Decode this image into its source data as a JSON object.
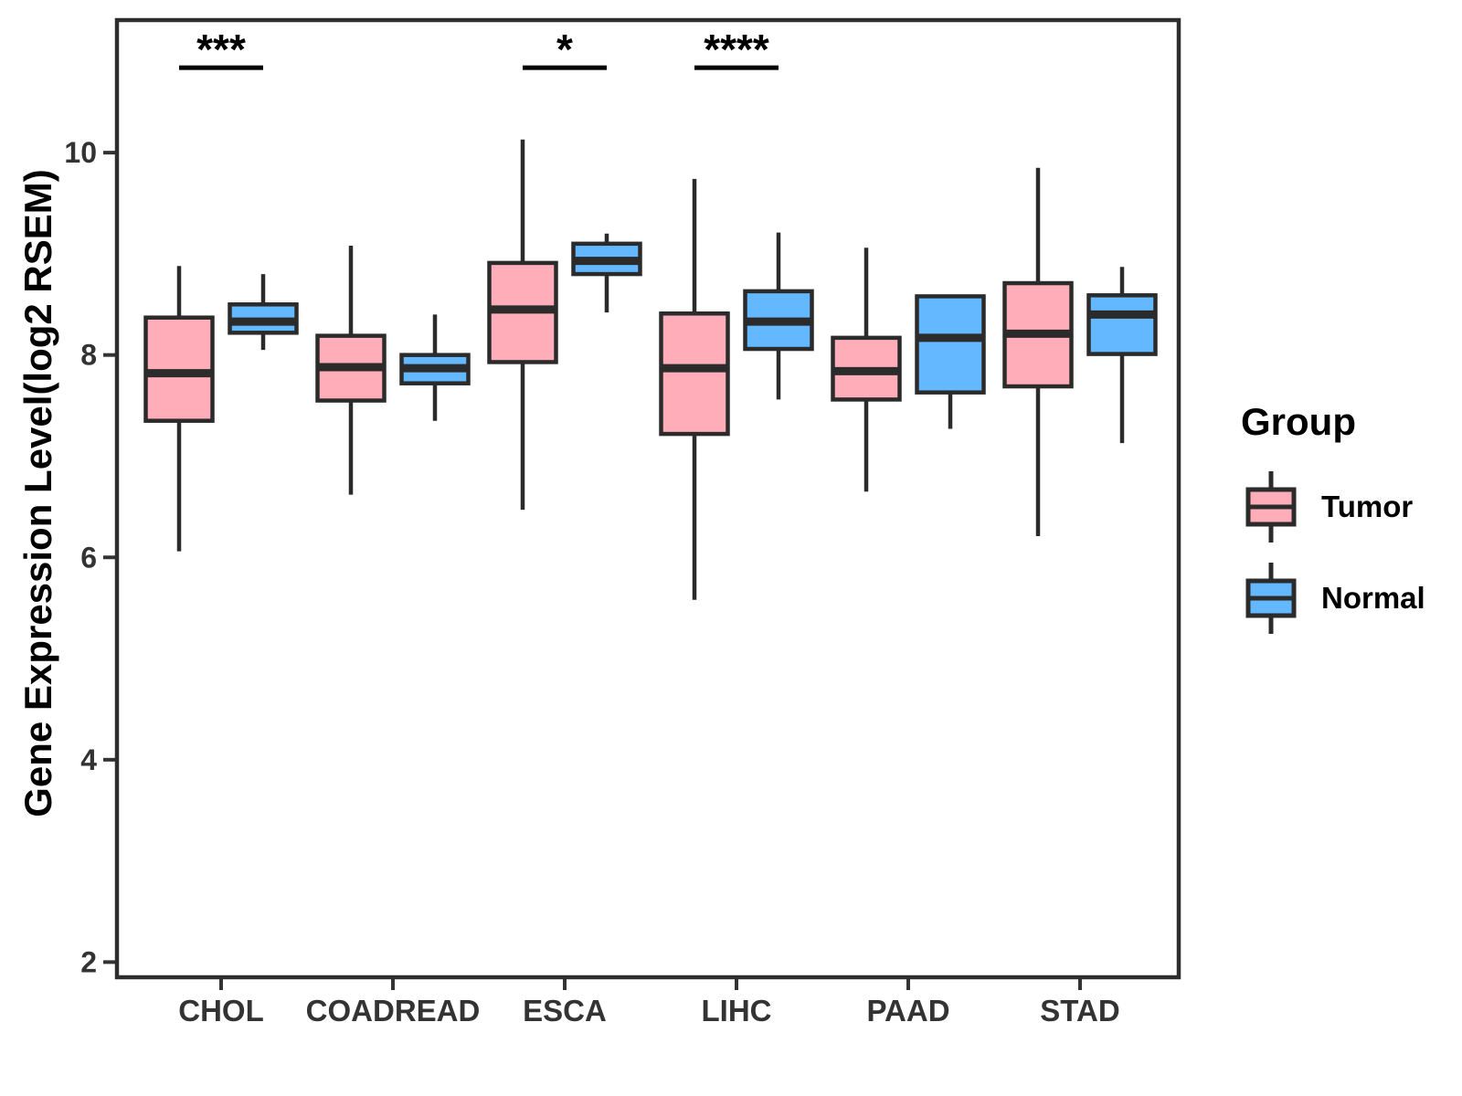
{
  "chart_data": {
    "type": "boxplot",
    "title": "",
    "xlabel": "",
    "ylabel": "Gene Expression Level(log2 RSEM)",
    "ylim": [
      1.85,
      11.31
    ],
    "yticks": [
      2,
      4,
      6,
      8,
      10
    ],
    "grid": false,
    "legend_position": "right",
    "categories": [
      "CHOL",
      "COADREAD",
      "ESCA",
      "LIHC",
      "PAAD",
      "STAD"
    ],
    "series": [
      {
        "name": "Tumor",
        "color": "#FFAEB9",
        "stats": [
          {
            "min": 6.06,
            "q1": 7.35,
            "median": 7.82,
            "q3": 8.37,
            "max": 8.88
          },
          {
            "min": 6.62,
            "q1": 7.55,
            "median": 7.88,
            "q3": 8.19,
            "max": 9.08
          },
          {
            "min": 6.47,
            "q1": 7.93,
            "median": 8.45,
            "q3": 8.91,
            "max": 10.13
          },
          {
            "min": 5.58,
            "q1": 7.22,
            "median": 7.87,
            "q3": 8.41,
            "max": 9.74
          },
          {
            "min": 6.65,
            "q1": 7.56,
            "median": 7.84,
            "q3": 8.17,
            "max": 9.06
          },
          {
            "min": 6.21,
            "q1": 7.69,
            "median": 8.21,
            "q3": 8.71,
            "max": 9.85
          }
        ]
      },
      {
        "name": "Normal",
        "color": "#63B8FF",
        "stats": [
          {
            "min": 8.05,
            "q1": 8.22,
            "median": 8.33,
            "q3": 8.5,
            "max": 8.8
          },
          {
            "min": 7.35,
            "q1": 7.72,
            "median": 7.87,
            "q3": 8.0,
            "max": 8.4
          },
          {
            "min": 8.42,
            "q1": 8.8,
            "median": 8.93,
            "q3": 9.1,
            "max": 9.2
          },
          {
            "min": 7.56,
            "q1": 8.06,
            "median": 8.33,
            "q3": 8.63,
            "max": 9.21
          },
          {
            "min": 7.27,
            "q1": 7.63,
            "median": 8.17,
            "q3": 8.58,
            "max": 8.58
          },
          {
            "min": 7.13,
            "q1": 8.01,
            "median": 8.4,
            "q3": 8.59,
            "max": 8.87
          }
        ]
      }
    ],
    "significance": [
      {
        "category": "CHOL",
        "label": "***",
        "y": 10.84
      },
      {
        "category": "ESCA",
        "label": "*",
        "y": 10.84
      },
      {
        "category": "LIHC",
        "label": "****",
        "y": 10.84
      }
    ]
  },
  "legend": {
    "title": "Group",
    "items": [
      {
        "label": "Tumor",
        "color": "#FFAEB9"
      },
      {
        "label": "Normal",
        "color": "#63B8FF"
      }
    ]
  },
  "style": {
    "stroke_color": "#2b2b2b",
    "panel_border_color": "#2d2d2d",
    "tick_text_color": "#333333",
    "sig_color": "#000000"
  }
}
